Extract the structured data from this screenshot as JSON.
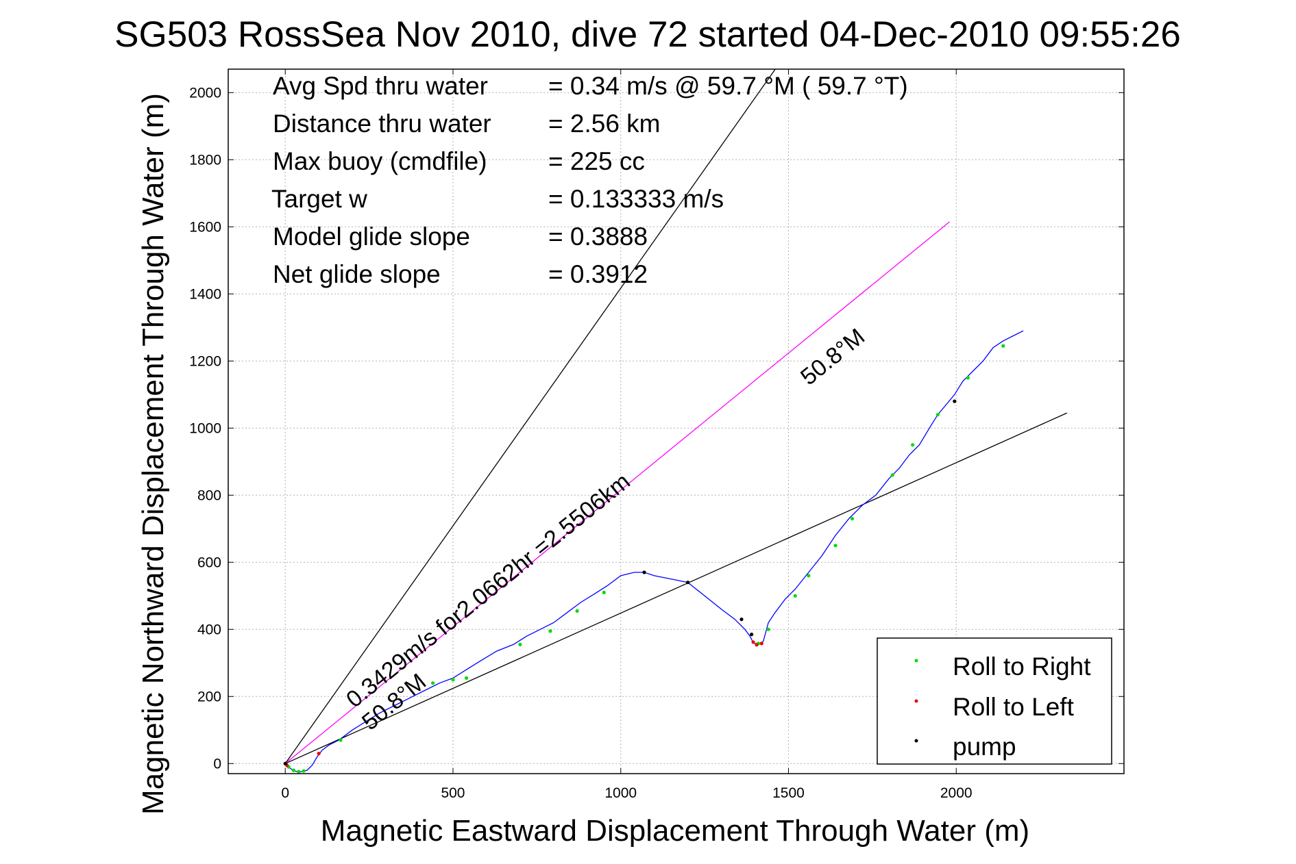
{
  "chart_data": {
    "type": "line",
    "title": "SG503 RossSea Nov 2010, dive 72 started 04-Dec-2010 09:55:26",
    "xlabel": "Magnetic Eastward Displacement Through Water (m)",
    "ylabel": "Magnetic Northward Displacement Through Water (m)",
    "xlim": [
      -170,
      2500
    ],
    "ylim": [
      -30,
      2070
    ],
    "xticks": [
      0,
      500,
      1000,
      1500,
      2000
    ],
    "yticks": [
      0,
      200,
      400,
      600,
      800,
      1000,
      1200,
      1400,
      1600,
      1800,
      2000
    ],
    "grid": true,
    "legend_position": "lower-right",
    "info_rows": [
      {
        "label": "Avg Spd thru water",
        "value": "=  0.34 m/s @  59.7 °M ( 59.7 °T)"
      },
      {
        "label": "Distance thru water",
        "value": "=  2.56 km"
      },
      {
        "label": "Max buoy (cmdfile)",
        "value": "= 225 cc"
      },
      {
        "label": "Target w",
        "value": "= 0.133333 m/s"
      },
      {
        "label": "Model glide slope",
        "value": "= 0.3888"
      },
      {
        "label": "Net glide slope",
        "value": "= 0.3912"
      }
    ],
    "line_annotations": {
      "speed_line": "0.3429m/s for2.0662hr =2.5506km",
      "heading_upper": "50.8°M",
      "heading_lower": "50.8°M"
    },
    "legend": [
      {
        "label": "Roll to Right",
        "color": "#00dd00"
      },
      {
        "label": "Roll to Left",
        "color": "#ee0000"
      },
      {
        "label": "pump",
        "color": "#000000"
      }
    ],
    "reference_lines": [
      {
        "name": "upper-heading",
        "color": "#000000",
        "x": [
          0,
          1510
        ],
        "y": [
          0,
          2140
        ]
      },
      {
        "name": "lower-heading",
        "color": "#000000",
        "x": [
          0,
          2330
        ],
        "y": [
          0,
          1045
        ]
      },
      {
        "name": "average-velocity",
        "color": "#ff00ff",
        "x": [
          0,
          1980
        ],
        "y": [
          0,
          1615
        ]
      }
    ],
    "track": {
      "color": "#0000ff",
      "x": [
        0,
        10,
        25,
        45,
        65,
        80,
        95,
        110,
        130,
        160,
        200,
        240,
        280,
        330,
        380,
        420,
        460,
        500,
        540,
        580,
        630,
        680,
        720,
        760,
        800,
        840,
        880,
        920,
        960,
        1000,
        1040,
        1070,
        1100,
        1150,
        1200,
        1250,
        1300,
        1340,
        1370,
        1385,
        1395,
        1410,
        1425,
        1440,
        1460,
        1490,
        1520,
        1560,
        1600,
        1640,
        1680,
        1720,
        1760,
        1800,
        1830,
        1860,
        1890,
        1920,
        1945,
        1970,
        1995,
        2020,
        2050,
        2080,
        2110,
        2140,
        2170,
        2200
      ],
      "y": [
        0,
        -10,
        -22,
        -25,
        -20,
        -5,
        20,
        40,
        55,
        70,
        100,
        125,
        150,
        175,
        200,
        220,
        240,
        255,
        280,
        305,
        335,
        355,
        380,
        400,
        420,
        450,
        480,
        505,
        530,
        560,
        570,
        570,
        560,
        550,
        540,
        500,
        460,
        430,
        400,
        380,
        360,
        355,
        365,
        420,
        450,
        490,
        520,
        570,
        620,
        680,
        730,
        770,
        800,
        850,
        880,
        920,
        950,
        1000,
        1040,
        1070,
        1100,
        1140,
        1170,
        1200,
        1240,
        1260,
        1275,
        1290
      ]
    },
    "markers": {
      "roll_right": {
        "x": [
          10,
          25,
          40,
          55,
          165,
          440,
          500,
          540,
          700,
          790,
          870,
          950,
          1410,
          1440,
          1520,
          1560,
          1640,
          1690,
          1810,
          1870,
          1945,
          2035,
          2140
        ],
        "y": [
          -10,
          -20,
          -24,
          -22,
          70,
          240,
          250,
          255,
          355,
          395,
          455,
          510,
          358,
          400,
          500,
          560,
          650,
          730,
          860,
          950,
          1040,
          1150,
          1245
        ]
      },
      "roll_left": {
        "x": [
          5,
          100,
          1395,
          1405,
          1420
        ],
        "y": [
          -5,
          30,
          362,
          354,
          358
        ]
      },
      "pump": {
        "x": [
          0,
          1070,
          1200,
          1360,
          1390,
          1995
        ],
        "y": [
          0,
          570,
          540,
          430,
          385,
          1080
        ]
      }
    }
  }
}
